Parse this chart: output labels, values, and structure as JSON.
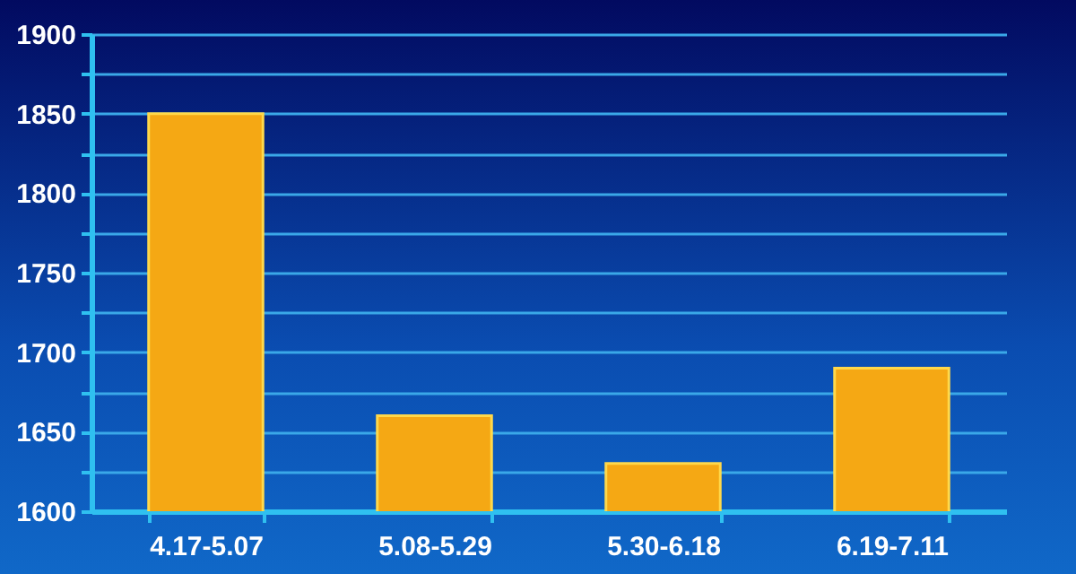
{
  "chart_data": {
    "type": "bar",
    "categories": [
      "4.17-5.07",
      "5.08-5.29",
      "5.30-6.18",
      "6.19-7.11"
    ],
    "values": [
      1850,
      1660,
      1630,
      1690
    ],
    "color": "#f5a814",
    "ylim": [
      1600,
      1900
    ],
    "yticks": [
      1600,
      {
        "value": 1625,
        "label": null
      },
      1650,
      {
        "value": 1675,
        "label": null
      },
      1700,
      {
        "value": 1725,
        "label": null
      },
      1750,
      {
        "value": 1775,
        "label": null
      },
      1800,
      {
        "value": 1825,
        "label": null
      },
      1850,
      {
        "value": 1875,
        "label": null
      },
      1900
    ],
    "grid": "y"
  }
}
